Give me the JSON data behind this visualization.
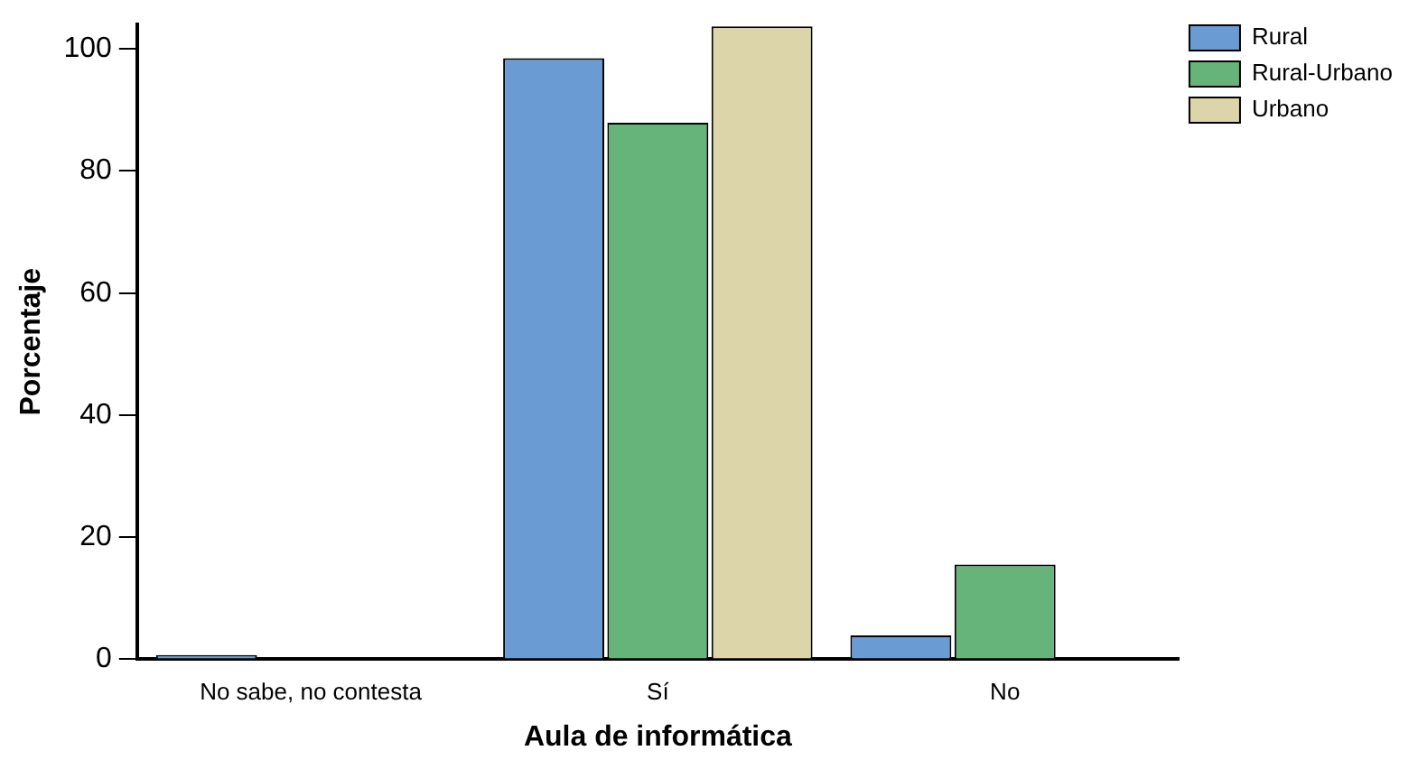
{
  "chart_data": {
    "type": "bar",
    "xlabel": "Aula de informática",
    "ylabel": "Porcentaje",
    "categories": [
      "No sabe, no contesta",
      "Sí",
      "No"
    ],
    "series": [
      {
        "name": "Rural",
        "color": "#6a9cd3",
        "values": [
          0.7,
          98.5,
          3.9
        ]
      },
      {
        "name": "Rural-Urbano",
        "color": "#66b47a",
        "values": [
          0,
          87.9,
          15.5
        ]
      },
      {
        "name": "Urbano",
        "color": "#dcd5a9",
        "values": [
          0,
          103.7,
          0
        ]
      }
    ],
    "ylim": [
      0,
      104
    ],
    "yticks": [
      0,
      20,
      40,
      60,
      80,
      100
    ],
    "grid": false,
    "legend": "top right"
  }
}
